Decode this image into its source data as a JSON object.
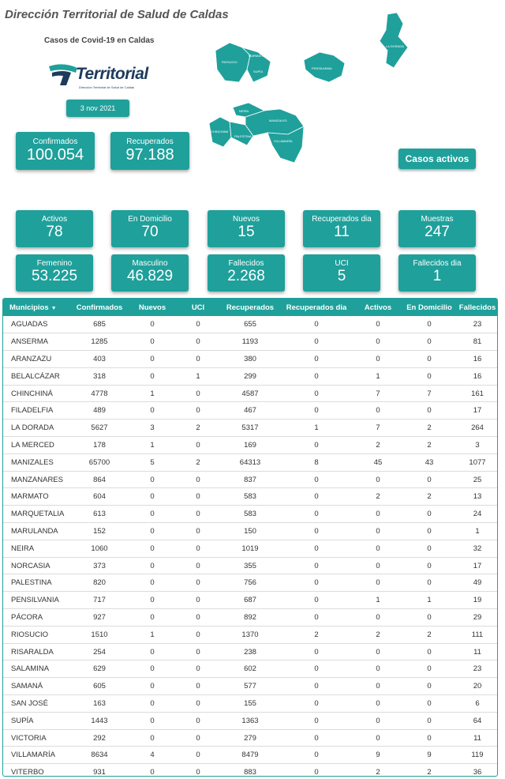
{
  "header": {
    "title": "Dirección Territorial de Salud de Caldas",
    "subtitle": "Casos de Covid-19 en Caldas",
    "date": "3 nov 2021",
    "casos_activos_label": "Casos activos"
  },
  "logo": {
    "text": "Territorial",
    "tagline": "Dirección Territorial de Salud de Caldas"
  },
  "colors": {
    "accent": "#1fa09b",
    "logo": "#1e3a5c"
  },
  "summary": {
    "confirmados": {
      "label": "Confirmados",
      "value": "100.054"
    },
    "recuperados": {
      "label": "Recuperados",
      "value": "97.188"
    }
  },
  "kpis_row1": [
    {
      "label": "Activos",
      "value": "78"
    },
    {
      "label": "En Domicilio",
      "value": "70"
    },
    {
      "label": "Nuevos",
      "value": "15"
    },
    {
      "label": "Recuperados dia",
      "value": "11"
    },
    {
      "label": "Muestras",
      "value": "247"
    }
  ],
  "kpis_row2": [
    {
      "label": "Femenino",
      "value": "53.225"
    },
    {
      "label": "Masculino",
      "value": "46.829"
    },
    {
      "label": "Fallecidos",
      "value": "2.268"
    },
    {
      "label": "UCI",
      "value": "5"
    },
    {
      "label": "Fallecidos dia",
      "value": "1"
    }
  ],
  "map": {
    "labels": [
      "RIOSUCIO",
      "MARMATO",
      "SUPÍA",
      "PENSILVANIA",
      "LA DORADA",
      "MANIZALES",
      "VILLAMARÍA",
      "CHINCHINÁ",
      "PALESTINA",
      "NEIRA"
    ]
  },
  "table": {
    "columns": [
      "Municipios",
      "Confirmados",
      "Nuevos",
      "UCI",
      "Recuperados",
      "Recuperados dia",
      "Activos",
      "En Domicilio",
      "Fallecidos"
    ],
    "rows": [
      [
        "AGUADAS",
        "685",
        "0",
        "0",
        "655",
        "0",
        "0",
        "0",
        "23"
      ],
      [
        "ANSERMA",
        "1285",
        "0",
        "0",
        "1193",
        "0",
        "0",
        "0",
        "81"
      ],
      [
        "ARANZAZU",
        "403",
        "0",
        "0",
        "380",
        "0",
        "0",
        "0",
        "16"
      ],
      [
        "BELALCÁZAR",
        "318",
        "0",
        "1",
        "299",
        "0",
        "1",
        "0",
        "16"
      ],
      [
        "CHINCHINÁ",
        "4778",
        "1",
        "0",
        "4587",
        "0",
        "7",
        "7",
        "161"
      ],
      [
        "FILADELFIA",
        "489",
        "0",
        "0",
        "467",
        "0",
        "0",
        "0",
        "17"
      ],
      [
        "LA DORADA",
        "5627",
        "3",
        "2",
        "5317",
        "1",
        "7",
        "2",
        "264"
      ],
      [
        "LA MERCED",
        "178",
        "1",
        "0",
        "169",
        "0",
        "2",
        "2",
        "3"
      ],
      [
        "MANIZALES",
        "65700",
        "5",
        "2",
        "64313",
        "8",
        "45",
        "43",
        "1077"
      ],
      [
        "MANZANARES",
        "864",
        "0",
        "0",
        "837",
        "0",
        "0",
        "0",
        "25"
      ],
      [
        "MARMATO",
        "604",
        "0",
        "0",
        "583",
        "0",
        "2",
        "2",
        "13"
      ],
      [
        "MARQUETALIA",
        "613",
        "0",
        "0",
        "583",
        "0",
        "0",
        "0",
        "24"
      ],
      [
        "MARULANDA",
        "152",
        "0",
        "0",
        "150",
        "0",
        "0",
        "0",
        "1"
      ],
      [
        "NEIRA",
        "1060",
        "0",
        "0",
        "1019",
        "0",
        "0",
        "0",
        "32"
      ],
      [
        "NORCASIA",
        "373",
        "0",
        "0",
        "355",
        "0",
        "0",
        "0",
        "17"
      ],
      [
        "PALESTINA",
        "820",
        "0",
        "0",
        "756",
        "0",
        "0",
        "0",
        "49"
      ],
      [
        "PENSILVANIA",
        "717",
        "0",
        "0",
        "687",
        "0",
        "1",
        "1",
        "19"
      ],
      [
        "PÁCORA",
        "927",
        "0",
        "0",
        "892",
        "0",
        "0",
        "0",
        "29"
      ],
      [
        "RIOSUCIO",
        "1510",
        "1",
        "0",
        "1370",
        "2",
        "2",
        "2",
        "111"
      ],
      [
        "RISARALDA",
        "254",
        "0",
        "0",
        "238",
        "0",
        "0",
        "0",
        "11"
      ],
      [
        "SALAMINA",
        "629",
        "0",
        "0",
        "602",
        "0",
        "0",
        "0",
        "23"
      ],
      [
        "SAMANÁ",
        "605",
        "0",
        "0",
        "577",
        "0",
        "0",
        "0",
        "20"
      ],
      [
        "SAN JOSÉ",
        "163",
        "0",
        "0",
        "155",
        "0",
        "0",
        "0",
        "6"
      ],
      [
        "SUPÍA",
        "1443",
        "0",
        "0",
        "1363",
        "0",
        "0",
        "0",
        "64"
      ],
      [
        "VICTORIA",
        "292",
        "0",
        "0",
        "279",
        "0",
        "0",
        "0",
        "11"
      ],
      [
        "VILLAMARÍA",
        "8634",
        "4",
        "0",
        "8479",
        "0",
        "9",
        "9",
        "119"
      ],
      [
        "VITERBO",
        "931",
        "0",
        "0",
        "883",
        "0",
        "2",
        "2",
        "36"
      ]
    ]
  }
}
